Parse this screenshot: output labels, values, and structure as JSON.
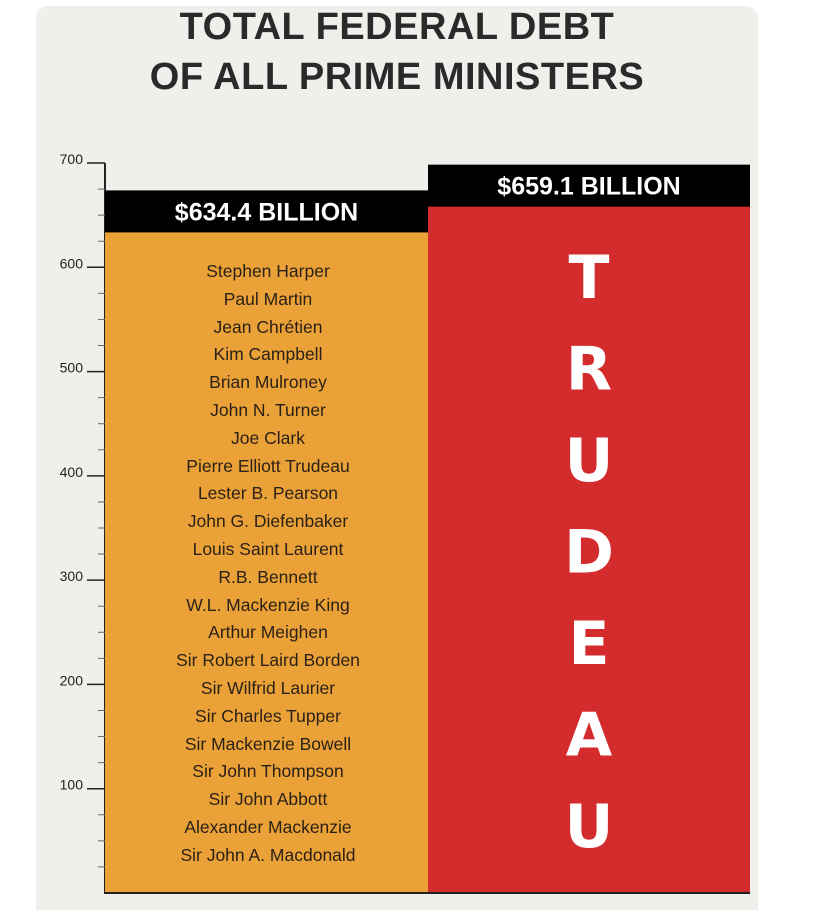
{
  "title_lines": [
    "TOTAL FEDERAL DEBT",
    "OF ALL PRIME MINISTERS"
  ],
  "colors": {
    "background": "#f1efeb",
    "left_bar": "#eaa238",
    "right_bar": "#d42c2c",
    "label_band": "#000000",
    "text_dark": "#2a2a2a"
  },
  "chart_data": {
    "type": "bar",
    "title": "TOTAL FEDERAL DEBT OF ALL PRIME MINISTERS",
    "xlabel": "",
    "ylabel": "",
    "ylim": [
      0,
      700
    ],
    "y_ticks": [
      100,
      200,
      300,
      400,
      500,
      600,
      700
    ],
    "grid": false,
    "bars": [
      {
        "value": 634.4,
        "value_label": "$634.4 BILLION",
        "color": "#eaa238",
        "names": [
          "Stephen Harper",
          "Paul Martin",
          "Jean Chrétien",
          "Kim Campbell",
          "Brian Mulroney",
          "John N. Turner",
          "Joe Clark",
          "Pierre Elliott Trudeau",
          "Lester B. Pearson",
          "John G. Diefenbaker",
          "Louis Saint Laurent",
          "R.B. Bennett",
          "W.L. Mackenzie King",
          "Arthur Meighen",
          "Sir Robert Laird Borden",
          "Sir Wilfrid Laurier",
          "Sir Charles Tupper",
          "Sir Mackenzie Bowell",
          "Sir John Thompson",
          "Sir John Abbott",
          "Alexander Mackenzie",
          "Sir John A. Macdonald"
        ]
      },
      {
        "value": 659.1,
        "value_label": "$659.1 BILLION",
        "color": "#d42c2c",
        "vertical_label": "TRUDEAU"
      }
    ]
  }
}
